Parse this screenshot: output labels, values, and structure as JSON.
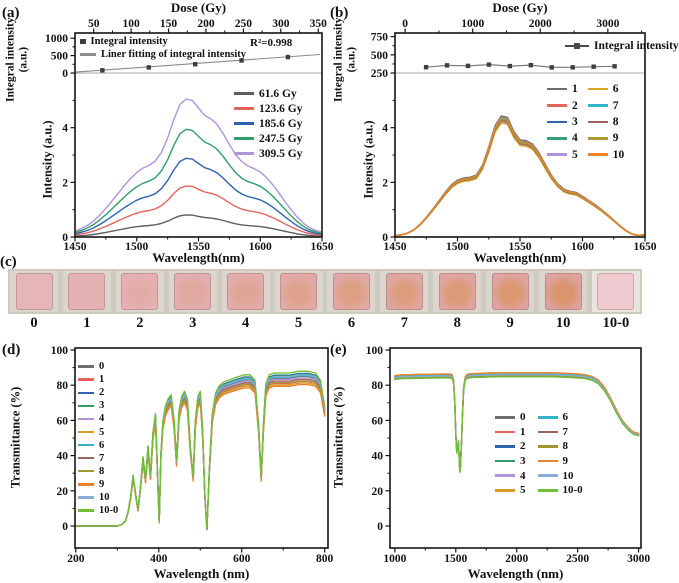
{
  "figure": {
    "panels": {
      "a": {
        "label": "(a)",
        "top_axis_title": "Dose (Gy)",
        "inset_y_label": "Integral intensity (a.u.)",
        "main_y_label": "Intensity (a.u.)",
        "x_label": "Wavelength(nm)",
        "r2": "R²=0.998"
      },
      "b": {
        "label": "(b)",
        "top_axis_title": "Dose (Gy)",
        "inset_y_label": "Integral intensity (a.u.)",
        "main_y_label": "Intensity (a.u.)",
        "x_label": "Wavelength(nm)"
      },
      "c": {
        "label": "(c)",
        "samples": [
          {
            "label": "0",
            "fill": "#e6b5b7",
            "spot": "#e6b5b7",
            "tile": "#dad6cd"
          },
          {
            "label": "1",
            "fill": "#e5b2b4",
            "spot": "#e5b2b4",
            "tile": "#dad6cd"
          },
          {
            "label": "2",
            "fill": "#e4b0b1",
            "spot": "#e3aca8",
            "tile": "#dad6cd"
          },
          {
            "label": "3",
            "fill": "#e3aeaf",
            "spot": "#e1a89f",
            "tile": "#dad6cd"
          },
          {
            "label": "4",
            "fill": "#e2acac",
            "spot": "#e0a596",
            "tile": "#dad6cd"
          },
          {
            "label": "5",
            "fill": "#e1aaa9",
            "spot": "#dfa28c",
            "tile": "#dad6cd"
          },
          {
            "label": "6",
            "fill": "#e0a9a7",
            "spot": "#dea083",
            "tile": "#dad6cd"
          },
          {
            "label": "7",
            "fill": "#dfa7a4",
            "spot": "#dd9d7d",
            "tile": "#dad6cd"
          },
          {
            "label": "8",
            "fill": "#dfa5a2",
            "spot": "#dc9a77",
            "tile": "#dad6cd"
          },
          {
            "label": "9",
            "fill": "#dea4a0",
            "spot": "#db9872",
            "tile": "#dad6cd"
          },
          {
            "label": "10",
            "fill": "#dda29e",
            "spot": "#da956e",
            "tile": "#dad6cd"
          },
          {
            "label": "10-0",
            "fill": "#efcad0",
            "spot": "#efcad0",
            "tile": "#e8e5df"
          }
        ]
      },
      "d": {
        "label": "(d)",
        "y_label": "Transmittance (%)",
        "x_label": "Wavelength (nm)"
      },
      "e": {
        "label": "(e)",
        "y_label": "Transmittance (%)",
        "x_label": "Wavelength (nm)"
      }
    }
  },
  "chart_data": [
    {
      "id": "a_inset",
      "type": "scatter",
      "x_label": "Dose (Gy)",
      "y_label": "Integral intensity (a.u.)",
      "x_range": [
        25,
        355
      ],
      "y_range": [
        0,
        1150
      ],
      "x_ticks": [
        50,
        100,
        150,
        200,
        250,
        300,
        350
      ],
      "y_ticks": [
        0,
        500,
        1000
      ],
      "x": [
        61.6,
        123.6,
        185.6,
        247.5,
        309.5
      ],
      "y": [
        78,
        160,
        252,
        360,
        458
      ],
      "fit_line": {
        "x": [
          26,
          352
        ],
        "y": [
          25,
          531
        ]
      },
      "r2": "R²=0.998",
      "point_color": "#3f3f3f",
      "legend": [
        {
          "label": "Integral intensity",
          "marker": "square",
          "color": "#3f3f3f"
        },
        {
          "label": "Liner fitting of integral intensity",
          "marker": "line",
          "color": "#8c8c8c"
        }
      ]
    },
    {
      "id": "a_main",
      "type": "line",
      "x_label": "Wavelength(nm)",
      "y_label": "Intensity (a.u.)",
      "x_range": [
        1450,
        1650
      ],
      "y_range": [
        0,
        6
      ],
      "x_ticks": [
        1450,
        1500,
        1550,
        1600,
        1650
      ],
      "y_ticks": [
        0,
        2,
        4
      ],
      "x": [
        1450,
        1455,
        1460,
        1465,
        1470,
        1475,
        1480,
        1485,
        1490,
        1495,
        1500,
        1505,
        1510,
        1515,
        1520,
        1525,
        1530,
        1535,
        1540,
        1545,
        1550,
        1555,
        1560,
        1565,
        1570,
        1575,
        1580,
        1585,
        1590,
        1595,
        1600,
        1605,
        1610,
        1615,
        1620,
        1625,
        1630,
        1635,
        1640,
        1645,
        1650
      ],
      "base": [
        0.22,
        0.3,
        0.42,
        0.58,
        0.8,
        1.05,
        1.32,
        1.6,
        1.88,
        2.14,
        2.36,
        2.52,
        2.62,
        2.78,
        3.1,
        3.62,
        4.3,
        4.85,
        5.05,
        5.0,
        4.72,
        4.45,
        4.32,
        4.12,
        3.78,
        3.38,
        3.02,
        2.76,
        2.6,
        2.5,
        2.38,
        2.18,
        1.92,
        1.62,
        1.3,
        1.0,
        0.72,
        0.5,
        0.34,
        0.24,
        0.18
      ],
      "series": [
        {
          "name": "61.6 Gy",
          "color": "#5f5f5f",
          "scale": 0.16
        },
        {
          "name": "123.6 Gy",
          "color": "#e4635c",
          "scale": 0.37
        },
        {
          "name": "185.6 Gy",
          "color": "#2f63b0",
          "scale": 0.57
        },
        {
          "name": "247.5 Gy",
          "color": "#2f9e68",
          "scale": 0.78
        },
        {
          "name": "309.5 Gy",
          "color": "#b293d9",
          "scale": 1.0
        }
      ]
    },
    {
      "id": "b_inset",
      "type": "scatter",
      "x_label": "Dose (Gy)",
      "y_label": "Integral intensity (a.u.)",
      "x_range": [
        -150,
        3550
      ],
      "y_range": [
        250,
        800
      ],
      "x_ticks": [
        0,
        1000,
        2000,
        3000
      ],
      "y_ticks": [
        250,
        500,
        750
      ],
      "x": [
        310,
        620,
        930,
        1240,
        1550,
        1860,
        2170,
        2480,
        2790,
        3100
      ],
      "y": [
        330,
        355,
        348,
        365,
        345,
        358,
        327,
        328,
        337,
        342
      ],
      "join": true,
      "point_color": "#3f3f3f",
      "legend": [
        {
          "label": "Integral intensity",
          "marker": "squareline",
          "color": "#4a4a4a"
        }
      ]
    },
    {
      "id": "b_main",
      "type": "line",
      "x_label": "Wavelength(nm)",
      "y_label": "Intensity (a.u.)",
      "x_range": [
        1450,
        1650
      ],
      "y_range": [
        0,
        6
      ],
      "x_ticks": [
        1450,
        1500,
        1550,
        1600,
        1650
      ],
      "y_ticks": [
        0,
        2,
        4
      ],
      "x": [
        1450,
        1455,
        1460,
        1465,
        1470,
        1475,
        1480,
        1485,
        1490,
        1495,
        1500,
        1505,
        1510,
        1515,
        1520,
        1525,
        1530,
        1535,
        1540,
        1545,
        1550,
        1555,
        1560,
        1565,
        1570,
        1575,
        1580,
        1585,
        1590,
        1595,
        1600,
        1605,
        1610,
        1615,
        1620,
        1625,
        1630,
        1635,
        1640,
        1645,
        1650
      ],
      "base": [
        0.05,
        0.08,
        0.14,
        0.26,
        0.45,
        0.7,
        0.98,
        1.28,
        1.58,
        1.85,
        2.02,
        2.1,
        2.12,
        2.2,
        2.55,
        3.2,
        3.95,
        4.3,
        4.25,
        3.75,
        3.45,
        3.42,
        3.3,
        3.0,
        2.6,
        2.2,
        1.9,
        1.7,
        1.62,
        1.58,
        1.45,
        1.3,
        1.15,
        0.98,
        0.8,
        0.6,
        0.4,
        0.22,
        0.1,
        0.06,
        0.08
      ],
      "series": [
        {
          "name": "1",
          "color": "#6e6e6e",
          "scale": 0.99
        },
        {
          "name": "2",
          "color": "#e4635c",
          "scale": 1.0
        },
        {
          "name": "3",
          "color": "#2f63b0",
          "scale": 1.03
        },
        {
          "name": "4",
          "color": "#35a07c",
          "scale": 1.0
        },
        {
          "name": "5",
          "color": "#b293d9",
          "scale": 0.98
        },
        {
          "name": "6",
          "color": "#d8a425",
          "scale": 0.97
        },
        {
          "name": "7",
          "color": "#35b5c9",
          "scale": 1.01
        },
        {
          "name": "8",
          "color": "#9a6460",
          "scale": 0.99
        },
        {
          "name": "9",
          "color": "#ab9a32",
          "scale": 1.0
        },
        {
          "name": "10",
          "color": "#e8822d",
          "scale": 1.02
        }
      ]
    },
    {
      "id": "d",
      "type": "line",
      "x_label": "Wavelength (nm)",
      "y_label": "Transmittance (%)",
      "x_range": [
        198,
        808
      ],
      "y_range": [
        -12,
        101
      ],
      "x_ticks": [
        200,
        400,
        600,
        800
      ],
      "y_ticks": [
        0,
        20,
        40,
        60,
        80,
        100
      ],
      "x": [
        200,
        300,
        312,
        320,
        326,
        332,
        338,
        344,
        350,
        356,
        362,
        368,
        374,
        380,
        386,
        392,
        397,
        401,
        405,
        410,
        416,
        423,
        430,
        437,
        443,
        449,
        455,
        462,
        469,
        476,
        483,
        488,
        494,
        500,
        506,
        511,
        516,
        522,
        529,
        537,
        546,
        556,
        567,
        579,
        592,
        606,
        620,
        632,
        641,
        647,
        652,
        658,
        666,
        678,
        695,
        715,
        738,
        760,
        778,
        790,
        797,
        800
      ],
      "base": [
        0,
        0,
        1,
        3,
        8,
        16,
        28,
        18,
        9,
        22,
        38,
        26,
        44,
        28,
        52,
        62,
        30,
        2,
        40,
        58,
        66,
        70,
        72,
        58,
        36,
        64,
        71,
        74,
        70,
        44,
        27,
        58,
        71,
        74,
        52,
        18,
        -2,
        32,
        62,
        73,
        77,
        79,
        80,
        81,
        82,
        83,
        83,
        80,
        55,
        27,
        55,
        78,
        83,
        84,
        84,
        84,
        85,
        85,
        84,
        80,
        70,
        66
      ],
      "series": [
        {
          "name": "0",
          "color": "#6e6e6e",
          "scale": 1.0
        },
        {
          "name": "1",
          "color": "#e4635c",
          "scale": 0.965
        },
        {
          "name": "2",
          "color": "#2f63b0",
          "scale": 1.02
        },
        {
          "name": "3",
          "color": "#2f9e68",
          "scale": 1.015
        },
        {
          "name": "4",
          "color": "#b293d9",
          "scale": 0.99
        },
        {
          "name": "5",
          "color": "#d89b25",
          "scale": 0.955
        },
        {
          "name": "6",
          "color": "#35b5c9",
          "scale": 1.005
        },
        {
          "name": "7",
          "color": "#9a6460",
          "scale": 0.98
        },
        {
          "name": "8",
          "color": "#a39633",
          "scale": 0.97
        },
        {
          "name": "9",
          "color": "#e8822d",
          "scale": 0.945
        },
        {
          "name": "10",
          "color": "#88aed6",
          "scale": 1.01
        },
        {
          "name": "10-0",
          "color": "#6fbe33",
          "scale": 1.035
        }
      ]
    },
    {
      "id": "e",
      "type": "line",
      "x_label": "Wavelength (nm)",
      "y_label": "Transmittance (%)",
      "x_range": [
        960,
        3020
      ],
      "y_range": [
        -12,
        101
      ],
      "x_ticks": [
        1000,
        1500,
        2000,
        2500,
        3000
      ],
      "y_ticks": [
        0,
        20,
        40,
        60,
        80,
        100
      ],
      "x": [
        1000,
        1060,
        1120,
        1200,
        1300,
        1400,
        1450,
        1470,
        1482,
        1492,
        1500,
        1508,
        1515,
        1521,
        1527,
        1533,
        1539,
        1546,
        1554,
        1564,
        1578,
        1596,
        1620,
        1660,
        1720,
        1800,
        1900,
        2000,
        2100,
        2200,
        2300,
        2400,
        2500,
        2560,
        2620,
        2670,
        2720,
        2770,
        2820,
        2870,
        2920,
        2960,
        3000
      ],
      "base": [
        84.5,
        85,
        85,
        85.2,
        85.3,
        85.4,
        85.4,
        85,
        82,
        70,
        52,
        42,
        46,
        48,
        40,
        31,
        34,
        46,
        62,
        78,
        84,
        85.2,
        85.5,
        85.7,
        85.8,
        86,
        86,
        86,
        86,
        86,
        86,
        85.8,
        85.4,
        85,
        84,
        82,
        78,
        72,
        65,
        59,
        55,
        52.8,
        52
      ],
      "series": [
        {
          "name": "0",
          "color": "#6e6e6e",
          "scale": 1.005
        },
        {
          "name": "1",
          "color": "#e4635c",
          "scale": 1.01
        },
        {
          "name": "2",
          "color": "#2f63b0",
          "scale": 0.995
        },
        {
          "name": "3",
          "color": "#2f9e68",
          "scale": 0.99
        },
        {
          "name": "4",
          "color": "#b293d9",
          "scale": 1.0
        },
        {
          "name": "5",
          "color": "#d89b25",
          "scale": 1.008
        },
        {
          "name": "6",
          "color": "#35b5c9",
          "scale": 1.002
        },
        {
          "name": "7",
          "color": "#9a6460",
          "scale": 0.997
        },
        {
          "name": "8",
          "color": "#a39633",
          "scale": 0.993
        },
        {
          "name": "9",
          "color": "#e8822d",
          "scale": 1.012
        },
        {
          "name": "10",
          "color": "#88aed6",
          "scale": 0.998
        },
        {
          "name": "10-0",
          "color": "#6fbe33",
          "scale": 0.985
        }
      ]
    }
  ]
}
